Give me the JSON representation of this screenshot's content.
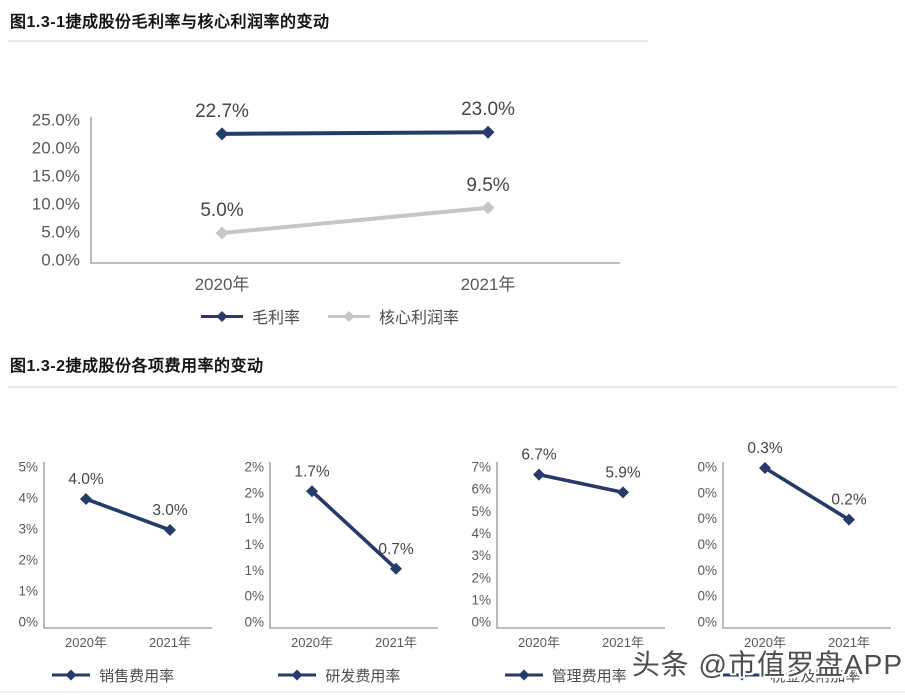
{
  "sections": [
    {
      "title": "图1.3-1捷成股份毛利率与核心利润率的变动"
    },
    {
      "title": "图1.3-2捷成股份各项费用率的变动"
    }
  ],
  "watermark": {
    "text": "头条 @市值罗盘APP"
  },
  "colors": {
    "primary": "#263B69",
    "secondary": "#C6C6C6",
    "axis": "#A9A9A9",
    "tick_text": "#595959",
    "label_text": "#464646"
  },
  "chart_data": [
    {
      "id": "margin-trend",
      "type": "line",
      "title": "图1.3-1捷成股份毛利率与核心利润率的变动",
      "categories": [
        "2020年",
        "2021年"
      ],
      "series": [
        {
          "name": "毛利率",
          "values": [
            22.7,
            23.0
          ],
          "point_labels": [
            "22.7%",
            "23.0%"
          ],
          "color": "#263B69"
        },
        {
          "name": "核心利润率",
          "values": [
            5.0,
            9.5
          ],
          "point_labels": [
            "5.0%",
            "9.5%"
          ],
          "color": "#C6C6C6"
        }
      ],
      "yticks": [
        "25.0%",
        "20.0%",
        "15.0%",
        "10.0%",
        "5.0%",
        "0.0%"
      ],
      "ylim": [
        0,
        25
      ],
      "xlabel": "",
      "ylabel": "",
      "grid": false,
      "legend_position": "bottom"
    },
    {
      "id": "sales-expense-rate",
      "type": "line",
      "title": "销售费用率",
      "categories": [
        "2020年",
        "2021年"
      ],
      "series": [
        {
          "name": "销售费用率",
          "values": [
            4.0,
            3.0
          ],
          "point_labels": [
            "4.0%",
            "3.0%"
          ],
          "color": "#263B69"
        }
      ],
      "yticks": [
        "5%",
        "4%",
        "3%",
        "2%",
        "1%",
        "0%"
      ],
      "ylim": [
        0,
        5
      ],
      "grid": false,
      "legend_position": "bottom"
    },
    {
      "id": "rnd-expense-rate",
      "type": "line",
      "title": "研发费用率",
      "categories": [
        "2020年",
        "2021年"
      ],
      "series": [
        {
          "name": "研发费用率",
          "values": [
            1.7,
            0.7
          ],
          "point_labels": [
            "1.7%",
            "0.7%"
          ],
          "color": "#263B69"
        }
      ],
      "yticks": [
        "2%",
        "2%",
        "1%",
        "1%",
        "1%",
        "0%",
        "0%"
      ],
      "ylim": [
        0,
        2
      ],
      "grid": false,
      "legend_position": "bottom"
    },
    {
      "id": "admin-expense-rate",
      "type": "line",
      "title": "管理费用率",
      "categories": [
        "2020年",
        "2021年"
      ],
      "series": [
        {
          "name": "管理费用率",
          "values": [
            6.7,
            5.9
          ],
          "point_labels": [
            "6.7%",
            "5.9%"
          ],
          "color": "#263B69"
        }
      ],
      "yticks": [
        "7%",
        "6%",
        "5%",
        "4%",
        "3%",
        "2%",
        "1%",
        "0%"
      ],
      "ylim": [
        0,
        7
      ],
      "grid": false,
      "legend_position": "bottom"
    },
    {
      "id": "tax-surcharge-rate",
      "type": "line",
      "title": "税金及附加率",
      "categories": [
        "2020年",
        "2021年"
      ],
      "series": [
        {
          "name": "税金及附加率",
          "values": [
            0.3,
            0.2
          ],
          "point_labels": [
            "0.3%",
            "0.2%"
          ],
          "color": "#263B69"
        }
      ],
      "yticks": [
        "0%",
        "0%",
        "0%",
        "0%",
        "0%",
        "0%",
        "0%"
      ],
      "ylim": [
        0,
        0.3
      ],
      "grid": false,
      "legend_position": "bottom"
    }
  ]
}
